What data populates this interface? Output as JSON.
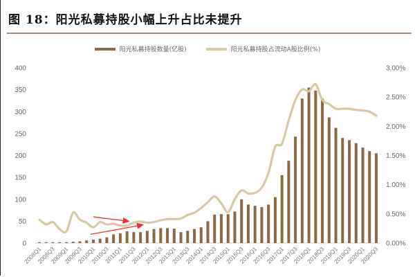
{
  "title": "图 18：阳光私募持股小幅上升占比未提升",
  "legend": [
    {
      "label": "阳光私募持股数量(亿股)",
      "color": "#8b6a43"
    },
    {
      "label": "阳光私募持股占流动A股比例(%)",
      "color": "#d8c8a4"
    }
  ],
  "colors": {
    "bar": "#8b6a43",
    "line": "#d8c8a4",
    "arrow": "#ff2a2a",
    "rule": "#b08c70"
  },
  "chart_data": {
    "type": "bar+line",
    "title": "图 18：阳光私募持股小幅上升占比未提升",
    "xlabel": "",
    "ylabel_left": "",
    "ylabel_right": "",
    "ylim_left": [
      0,
      400
    ],
    "ylim_right": [
      0,
      3.0
    ],
    "yticks_left": [
      "0",
      "50",
      "100",
      "150",
      "200",
      "250",
      "300",
      "350",
      "400"
    ],
    "yticks_right": [
      "0.00%",
      "0.50%",
      "1.00%",
      "1.50%",
      "2.00%",
      "2.50%",
      "3.00%"
    ],
    "xtick_labels": [
      "2008Q1",
      "2008Q3",
      "2009Q1",
      "2009Q3",
      "2010Q1",
      "2010Q3",
      "2011Q1",
      "2011Q3",
      "2012Q1",
      "2012Q3",
      "2013Q1",
      "2013Q3",
      "2014Q1",
      "2014Q3",
      "2015Q1",
      "2015Q3",
      "2016Q1",
      "2016Q3",
      "2017Q1",
      "2017Q3",
      "2018Q1",
      "2018Q3",
      "2019Q1",
      "2019Q3",
      "2020Q1",
      "2020Q3"
    ],
    "categories": [
      "2008Q1",
      "2008Q2",
      "2008Q3",
      "2008Q4",
      "2009Q1",
      "2009Q2",
      "2009Q3",
      "2009Q4",
      "2010Q1",
      "2010Q2",
      "2010Q3",
      "2010Q4",
      "2011Q1",
      "2011Q2",
      "2011Q3",
      "2011Q4",
      "2012Q1",
      "2012Q2",
      "2012Q3",
      "2012Q4",
      "2013Q1",
      "2013Q2",
      "2013Q3",
      "2013Q4",
      "2014Q1",
      "2014Q2",
      "2014Q3",
      "2014Q4",
      "2015Q1",
      "2015Q2",
      "2015Q3",
      "2015Q4",
      "2016Q1",
      "2016Q2",
      "2016Q3",
      "2016Q4",
      "2017Q1",
      "2017Q2",
      "2017Q3",
      "2017Q4",
      "2018Q1",
      "2018Q2",
      "2018Q3",
      "2018Q4",
      "2019Q1",
      "2019Q2",
      "2019Q3",
      "2019Q4",
      "2020Q1",
      "2020Q2",
      "2020Q3"
    ],
    "series": [
      {
        "name": "阳光私募持股数量(亿股)",
        "type": "bar",
        "axis": "left",
        "values": [
          2,
          2,
          2,
          2,
          2,
          3,
          4,
          6,
          8,
          10,
          13,
          20,
          22,
          27,
          25,
          25,
          28,
          32,
          34,
          34,
          33,
          25,
          28,
          32,
          36,
          50,
          65,
          66,
          66,
          72,
          100,
          88,
          85,
          82,
          88,
          105,
          155,
          188,
          243,
          330,
          355,
          348,
          330,
          287,
          263,
          240,
          235,
          228,
          218,
          210,
          205
        ]
      },
      {
        "name": "阳光私募持股占流动A股比例(%)",
        "type": "line",
        "axis": "right",
        "values": [
          0.4,
          0.32,
          0.36,
          0.24,
          0.2,
          0.52,
          0.4,
          0.35,
          0.27,
          0.36,
          0.32,
          0.33,
          0.3,
          0.3,
          0.35,
          0.37,
          0.35,
          0.36,
          0.39,
          0.41,
          0.41,
          0.42,
          0.48,
          0.52,
          0.6,
          0.7,
          0.8,
          0.68,
          0.53,
          0.75,
          0.9,
          0.85,
          0.86,
          0.95,
          1.2,
          1.65,
          1.7,
          2.1,
          2.45,
          2.63,
          2.6,
          2.72,
          2.45,
          2.38,
          2.3,
          2.3,
          2.3,
          2.28,
          2.27,
          2.25,
          2.18
        ]
      }
    ],
    "annotations": [
      {
        "type": "arrow",
        "color": "#ff2a2a",
        "from": [
          "2010Q1",
          0.45
        ],
        "to": [
          "2011Q2",
          0.37
        ],
        "note": "red arrow above ratio line (flat/declining)"
      },
      {
        "type": "arrow",
        "color": "#ff2a2a",
        "from": [
          "2010Q1",
          20
        ],
        "to": [
          "2011Q4",
          42
        ],
        "note": "red arrow above bars (rising)"
      }
    ],
    "grid": false,
    "legend_position": "top"
  }
}
